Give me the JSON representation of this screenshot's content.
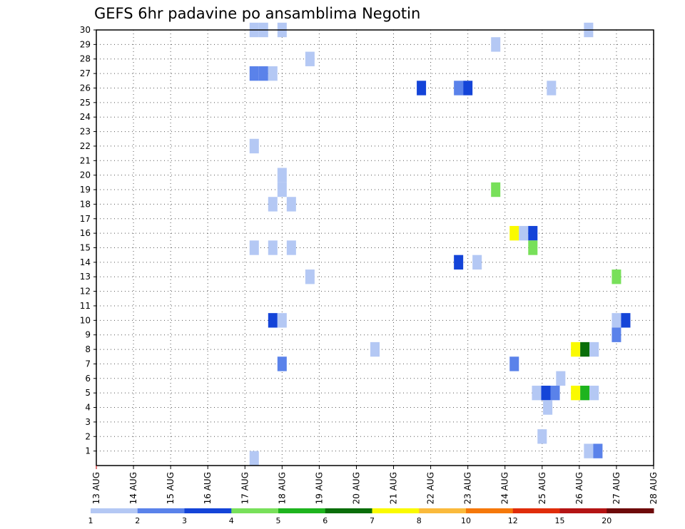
{
  "chart_data": {
    "type": "heatmap",
    "title": "GEFS 6hr padavine po ansamblima Negotin",
    "xlabel": "",
    "ylabel": "",
    "x_ticks": [
      "13 AUG",
      "14 AUG",
      "15 AUG",
      "16 AUG",
      "17 AUG",
      "18 AUG",
      "19 AUG",
      "20 AUG",
      "21 AUG",
      "22 AUG",
      "23 AUG",
      "24 AUG",
      "25 AUG",
      "26 AUG",
      "27 AUG",
      "28 AUG"
    ],
    "x_range_days": [
      0,
      15
    ],
    "y_ticks": [
      1,
      2,
      3,
      4,
      5,
      6,
      7,
      8,
      9,
      10,
      11,
      12,
      13,
      14,
      15,
      16,
      17,
      18,
      19,
      20,
      21,
      22,
      23,
      24,
      25,
      26,
      27,
      28,
      29,
      30
    ],
    "y_range": [
      0,
      30
    ],
    "grid": true,
    "colorbar": {
      "labels": [
        "1",
        "2",
        "3",
        "4",
        "5",
        "6",
        "7",
        "8",
        "10",
        "12",
        "15",
        "20"
      ],
      "colors": [
        "#b4c8f4",
        "#5a82ea",
        "#1444d8",
        "#78e05a",
        "#1eb41e",
        "#0a6e0a",
        "#fafa00",
        "#faba3c",
        "#f5780a",
        "#e02d0a",
        "#b41414",
        "#6e0a0a"
      ]
    },
    "cells": [
      {
        "day": 4.25,
        "member": 30,
        "class": 1
      },
      {
        "day": 4.5,
        "member": 30,
        "class": 1
      },
      {
        "day": 5.0,
        "member": 30,
        "class": 1
      },
      {
        "day": 13.25,
        "member": 30,
        "class": 1
      },
      {
        "day": 10.75,
        "member": 29,
        "class": 1
      },
      {
        "day": 5.75,
        "member": 28,
        "class": 1
      },
      {
        "day": 4.25,
        "member": 27,
        "class": 2
      },
      {
        "day": 4.5,
        "member": 27,
        "class": 2
      },
      {
        "day": 4.75,
        "member": 27,
        "class": 1
      },
      {
        "day": 8.75,
        "member": 26,
        "class": 3
      },
      {
        "day": 9.75,
        "member": 26,
        "class": 2
      },
      {
        "day": 10.0,
        "member": 26,
        "class": 3
      },
      {
        "day": 12.25,
        "member": 26,
        "class": 1
      },
      {
        "day": 4.25,
        "member": 22,
        "class": 1
      },
      {
        "day": 5.0,
        "member": 20,
        "class": 1
      },
      {
        "day": 5.0,
        "member": 19,
        "class": 1
      },
      {
        "day": 10.75,
        "member": 19,
        "class": 4
      },
      {
        "day": 4.75,
        "member": 18,
        "class": 1
      },
      {
        "day": 5.25,
        "member": 18,
        "class": 1
      },
      {
        "day": 11.25,
        "member": 16,
        "class": 7
      },
      {
        "day": 11.5,
        "member": 16,
        "class": 1
      },
      {
        "day": 11.75,
        "member": 16,
        "class": 3
      },
      {
        "day": 4.25,
        "member": 15,
        "class": 1
      },
      {
        "day": 4.75,
        "member": 15,
        "class": 1
      },
      {
        "day": 5.25,
        "member": 15,
        "class": 1
      },
      {
        "day": 11.75,
        "member": 15,
        "class": 4
      },
      {
        "day": 9.75,
        "member": 14,
        "class": 3
      },
      {
        "day": 10.25,
        "member": 14,
        "class": 1
      },
      {
        "day": 5.75,
        "member": 13,
        "class": 1
      },
      {
        "day": 14.0,
        "member": 13,
        "class": 4
      },
      {
        "day": 4.75,
        "member": 10,
        "class": 3
      },
      {
        "day": 5.0,
        "member": 10,
        "class": 1
      },
      {
        "day": 14.0,
        "member": 10,
        "class": 1
      },
      {
        "day": 14.25,
        "member": 10,
        "class": 3
      },
      {
        "day": 14.0,
        "member": 9,
        "class": 2
      },
      {
        "day": 7.5,
        "member": 8,
        "class": 1
      },
      {
        "day": 12.9,
        "member": 8,
        "class": 7
      },
      {
        "day": 13.15,
        "member": 8,
        "class": 6
      },
      {
        "day": 13.4,
        "member": 8,
        "class": 1
      },
      {
        "day": 5.0,
        "member": 7,
        "class": 2
      },
      {
        "day": 11.25,
        "member": 7,
        "class": 2
      },
      {
        "day": 12.5,
        "member": 6,
        "class": 1
      },
      {
        "day": 11.85,
        "member": 5,
        "class": 1
      },
      {
        "day": 12.1,
        "member": 5,
        "class": 3
      },
      {
        "day": 12.35,
        "member": 5,
        "class": 2
      },
      {
        "day": 12.9,
        "member": 5,
        "class": 7
      },
      {
        "day": 13.15,
        "member": 5,
        "class": 5
      },
      {
        "day": 13.4,
        "member": 5,
        "class": 1
      },
      {
        "day": 12.15,
        "member": 4,
        "class": 1
      },
      {
        "day": 12.0,
        "member": 2,
        "class": 1
      },
      {
        "day": 13.25,
        "member": 1,
        "class": 1
      },
      {
        "day": 13.5,
        "member": 1,
        "class": 2
      },
      {
        "day": 4.25,
        "member": 0.5,
        "class": 1
      }
    ]
  }
}
